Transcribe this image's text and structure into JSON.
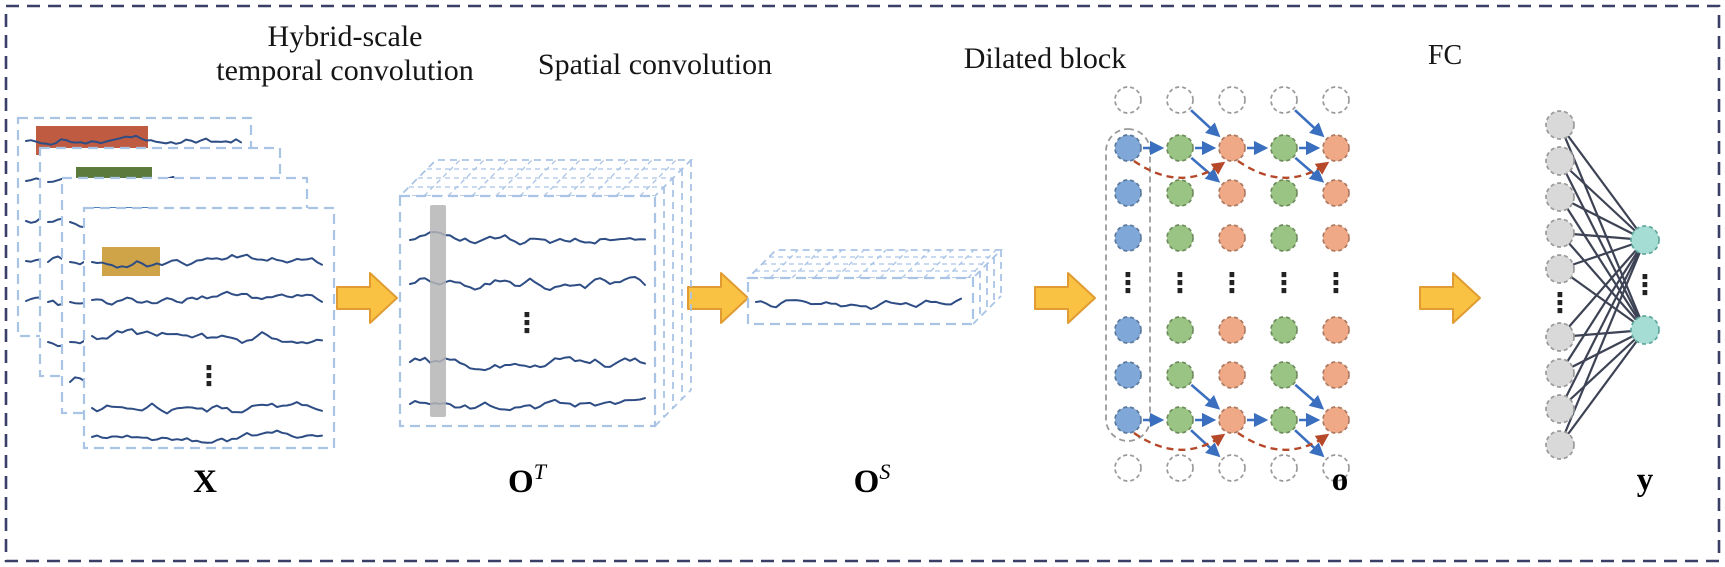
{
  "titles": {
    "hybrid_line1": "Hybrid-scale",
    "hybrid_line2": "temporal convolution",
    "spatial": "Spatial convolution",
    "dilated": "Dilated block",
    "fc": "FC"
  },
  "labels": {
    "input": "X",
    "temporal_base": "O",
    "temporal_sup": "T",
    "spatial_base": "O",
    "spatial_sup": "S",
    "dilated_out": "o",
    "fc_out": "y"
  },
  "glyphs": {
    "vdots": "⋮"
  },
  "colors": {
    "border": "#3a3f68",
    "panel_dash": "#aac4e6",
    "signal": "#2e4d85",
    "kernel_red": "#bf5b41",
    "kernel_green": "#5d7a3d",
    "kernel_blue": "#4f81bd",
    "kernel_yellow": "#cfa348",
    "kernel_bar_gray": "#b5b5b5",
    "arrow_fill": "#f9c243",
    "arrow_stroke": "#e09c33",
    "node_blue": "#7fa8d9",
    "node_green": "#9ac483",
    "node_orange": "#f0a987",
    "node_gray_fill": "#d9d9d9",
    "node_gray_stroke": "#999999",
    "node_teal": "#a5dcd3",
    "conn_blue": "#3a6fc0",
    "residual_red": "#b5492a",
    "fc_line": "#3d4354"
  }
}
